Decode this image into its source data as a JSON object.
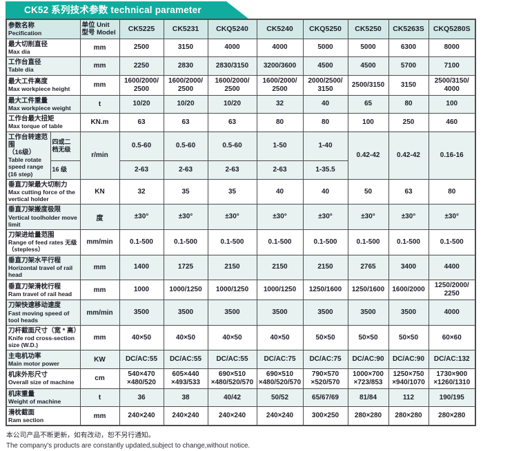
{
  "title": "CK52 系列技术参数  technical parameter",
  "colors": {
    "accent": "#10ad9e",
    "header_bg": "#d2e9e8",
    "stripe_bg": "#e7f2f1",
    "border": "#4d4d4d"
  },
  "table": {
    "param_header": {
      "zh": "参数名称",
      "en": "Pecification"
    },
    "unit_header": {
      "line1": "单位 Unit",
      "line2": "型号 Model"
    },
    "models": [
      "CK5225",
      "CK5231",
      "CKQ5240",
      "CK5240",
      "CKQ5250",
      "CK5250",
      "CK5263S",
      "CKQ5280S"
    ],
    "rows": [
      {
        "zh": "最大切削直径",
        "en": "Max dia",
        "unit": "mm",
        "values": [
          "2500",
          "3150",
          "4000",
          "4000",
          "5000",
          "5000",
          "6300",
          "8000"
        ]
      },
      {
        "zh": "工作台直径",
        "en": "Table dia",
        "unit": "mm",
        "values": [
          "2250",
          "2830",
          "2830/3150",
          "3200/3600",
          "4500",
          "4500",
          "5700",
          "7100"
        ]
      },
      {
        "zh": "最大工件高度",
        "en": "Max workpiece height",
        "unit": "mm",
        "values": [
          "1600/2000/\n2500",
          "1600/2000/\n2500",
          "1600/2000/\n2500",
          "1600/2000/\n2500",
          "2000/2500/\n3150",
          "2500/3150",
          "3150",
          "2500/3150/\n4000"
        ]
      },
      {
        "zh": "最大工件重量",
        "en": "Max workpiece weight",
        "unit": "t",
        "values": [
          "10/20",
          "10/20",
          "10/20",
          "32",
          "40",
          "65",
          "80",
          "100"
        ]
      },
      {
        "zh": "工作台最大扭矩",
        "en": "Max torque of table",
        "unit": "KN.m",
        "values": [
          "63",
          "63",
          "63",
          "80",
          "80",
          "100",
          "250",
          "460"
        ]
      },
      {
        "type": "speed",
        "zh": "工作台转速范围\n（16级）",
        "en": "Table rotate speed range (16 step)",
        "unit": "r/min",
        "sub_rows": [
          {
            "label": "四或二\n档无级",
            "values": [
              "0.5-60",
              "0.5-60",
              "0.5-60",
              "1-50",
              "1-40"
            ]
          },
          {
            "label": "16 级",
            "values": [
              "2-63",
              "2-63",
              "2-63",
              "2-63",
              "1-35.5"
            ]
          }
        ],
        "merged_values": [
          "0.42-42",
          "0.42-42",
          "0.16-16"
        ]
      },
      {
        "zh": "垂直刀架最大切削力",
        "en": "Max cutting force of the vertical holder",
        "unit": "KN",
        "values": [
          "32",
          "35",
          "35",
          "40",
          "40",
          "50",
          "63",
          "80"
        ]
      },
      {
        "zh": "垂直刀架搬度极限",
        "en": "Vertical toolholder move limit",
        "unit": "度",
        "values": [
          "±30°",
          "±30°",
          "±30°",
          "±30°",
          "±30°",
          "±30°",
          "±30°",
          "±30°"
        ]
      },
      {
        "zh": "刀架进给量范围",
        "en": "Range of feed rates 无级（stepless）",
        "unit": "mm/min",
        "values": [
          "0.1-500",
          "0.1-500",
          "0.1-500",
          "0.1-500",
          "0.1-500",
          "0.1-500",
          "0.1-500",
          "0.1-500"
        ]
      },
      {
        "zh": "垂直刀架水平行程",
        "en": "Horizontal travel of rail head",
        "unit": "mm",
        "values": [
          "1400",
          "1725",
          "2150",
          "2150",
          "2150",
          "2765",
          "3400",
          "4400"
        ]
      },
      {
        "zh": "垂直刀架滑枕行程",
        "en": "Ram travel of rail head",
        "unit": "mm",
        "values": [
          "1000",
          "1000/1250",
          "1000/1250",
          "1000/1250",
          "1250/1600",
          "1250/1600",
          "1600/2000",
          "1250/2000/\n2250"
        ]
      },
      {
        "zh": "刀架快速移动速度",
        "en": "Fast moving speed of tool heads",
        "unit": "mm/min",
        "values": [
          "3500",
          "3500",
          "3500",
          "3500",
          "3500",
          "3500",
          "3500",
          "4000"
        ]
      },
      {
        "zh": "刀杆截面尺寸（宽 * 高）",
        "en": "Knife rod cross-section size (W.D.)",
        "unit": "mm",
        "values": [
          "40×50",
          "40×50",
          "40×50",
          "40×50",
          "50×50",
          "50×50",
          "50×50",
          "60×60"
        ]
      },
      {
        "zh": "主电机功率",
        "en": "Main motor power",
        "unit": "KW",
        "values": [
          "DC/AC:55",
          "DC/AC:55",
          "DC/AC:55",
          "DC/AC:75",
          "DC/AC:75",
          "DC/AC:90",
          "DC/AC:90",
          "DC/AC:132"
        ]
      },
      {
        "zh": "机床外形尺寸",
        "en": "Overall size of machine",
        "unit": "cm",
        "values": [
          "540×470\n×480/520",
          "605×440\n×493/533",
          "690×510\n×480/520/570",
          "690×510\n×480/520/570",
          "790×570\n×520/570",
          "1000×700\n×723/853",
          "1250×750\n×940/1070",
          "1730×900\n×1260/1310"
        ]
      },
      {
        "zh": "机床重量",
        "en": "Weight of machine",
        "unit": "t",
        "values": [
          "36",
          "38",
          "40/42",
          "50/52",
          "65/67/69",
          "81/84",
          "112",
          "190/195"
        ]
      },
      {
        "zh": "滑枕截面",
        "en": "Ram section",
        "unit": "mm",
        "values": [
          "240×240",
          "240×240",
          "240×240",
          "240×240",
          "300×250",
          "280×280",
          "280×280",
          "280×280"
        ]
      }
    ]
  },
  "footer": {
    "zh": "本公司产品不断更新，如有改动，恕不另行通知。",
    "en": "The company's products are constantly updated,subject to change,without notice."
  }
}
